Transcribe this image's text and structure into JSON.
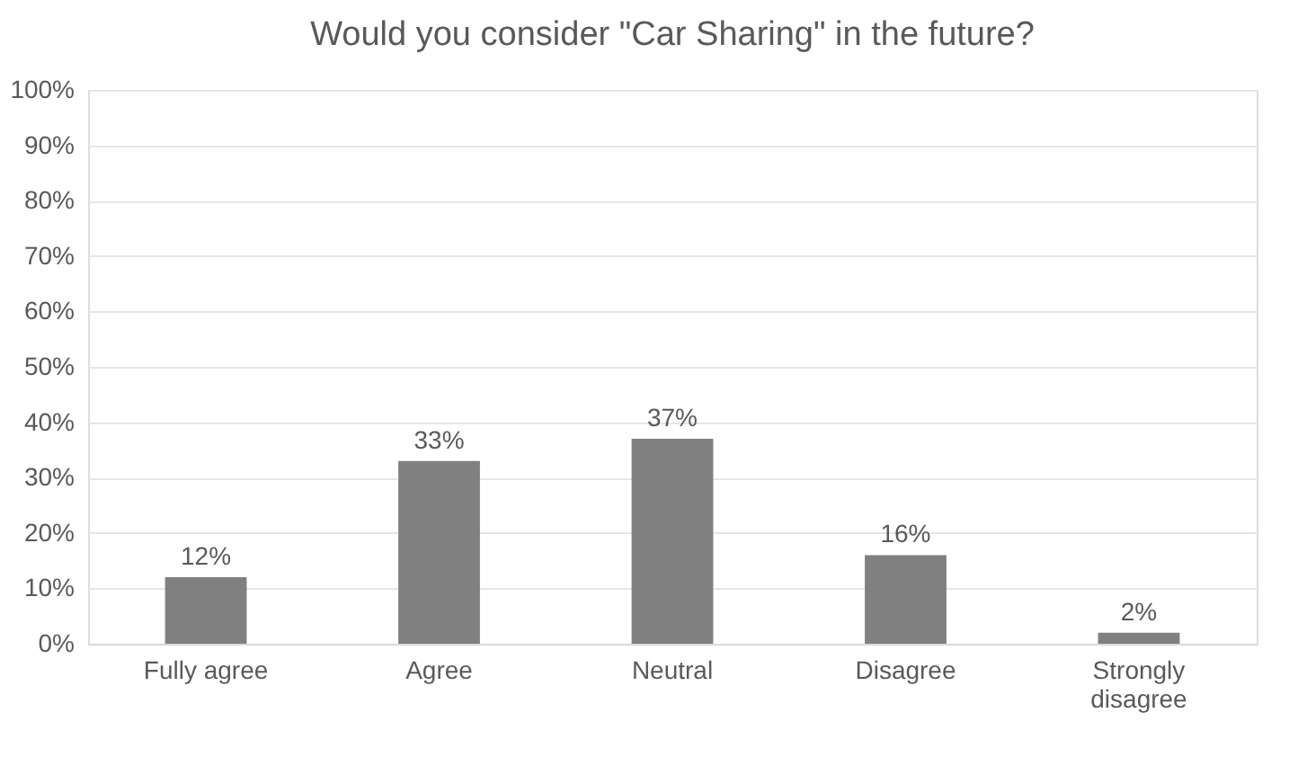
{
  "chart_data": {
    "type": "bar",
    "title": "Would you consider \"Car Sharing\" in the future?",
    "categories": [
      "Fully agree",
      "Agree",
      "Neutral",
      "Disagree",
      "Strongly disagree"
    ],
    "values": [
      12,
      33,
      37,
      16,
      2
    ],
    "value_labels": [
      "12%",
      "33%",
      "37%",
      "16%",
      "2%"
    ],
    "color": "#808080",
    "ylim": [
      0,
      100
    ],
    "yticks": [
      {
        "value": 0,
        "label": "0%"
      },
      {
        "value": 10,
        "label": "10%"
      },
      {
        "value": 20,
        "label": "20%"
      },
      {
        "value": 30,
        "label": "30%"
      },
      {
        "value": 40,
        "label": "40%"
      },
      {
        "value": 50,
        "label": "50%"
      },
      {
        "value": 60,
        "label": "60%"
      },
      {
        "value": 70,
        "label": "70%"
      },
      {
        "value": 80,
        "label": "80%"
      },
      {
        "value": 90,
        "label": "90%"
      },
      {
        "value": 100,
        "label": "100%"
      }
    ],
    "grid": "y"
  }
}
